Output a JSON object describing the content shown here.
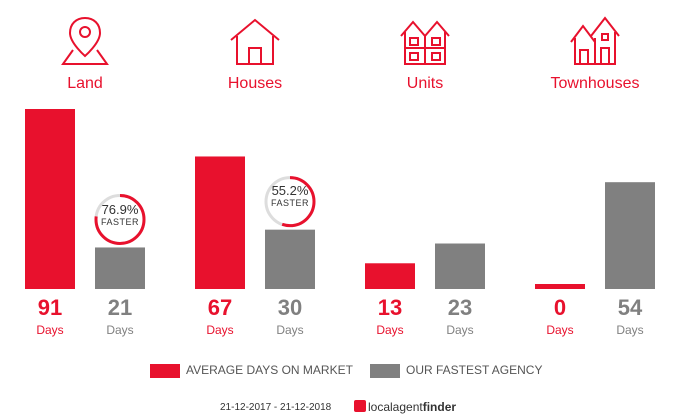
{
  "categories": [
    {
      "label": "Land",
      "icon": "land-map-pin-icon"
    },
    {
      "label": "Houses",
      "icon": "house-icon"
    },
    {
      "label": "Units",
      "icon": "units-building-icon"
    },
    {
      "label": "Townhouses",
      "icon": "townhouses-icon"
    }
  ],
  "chart_data": {
    "type": "bar",
    "categories": [
      "Land",
      "Houses",
      "Units",
      "Townhouses"
    ],
    "series": [
      {
        "name": "AVERAGE DAYS ON MARKET",
        "values": [
          91,
          67,
          13,
          0
        ],
        "color": "#e8112d"
      },
      {
        "name": "OUR FASTEST AGENCY",
        "values": [
          21,
          30,
          23,
          54
        ],
        "color": "#808080"
      }
    ],
    "unit_label": "Days",
    "badges": [
      {
        "category": "Land",
        "percent_text": "76.9%",
        "percent": 76.9,
        "word": "FASTER"
      },
      {
        "category": "Houses",
        "percent_text": "55.2%",
        "percent": 55.2,
        "word": "FASTER"
      }
    ],
    "legend_placement": "bottom",
    "grid": false
  },
  "legend": {
    "avg_label": "AVERAGE DAYS ON MARKET",
    "fast_label": "OUR FASTEST AGENCY"
  },
  "footer": {
    "date_range": "21-12-2017 - 21-12-2018",
    "brand_light": "localagent",
    "brand_bold": "finder"
  },
  "colors": {
    "accent": "#e8112d",
    "grey": "#808080"
  }
}
